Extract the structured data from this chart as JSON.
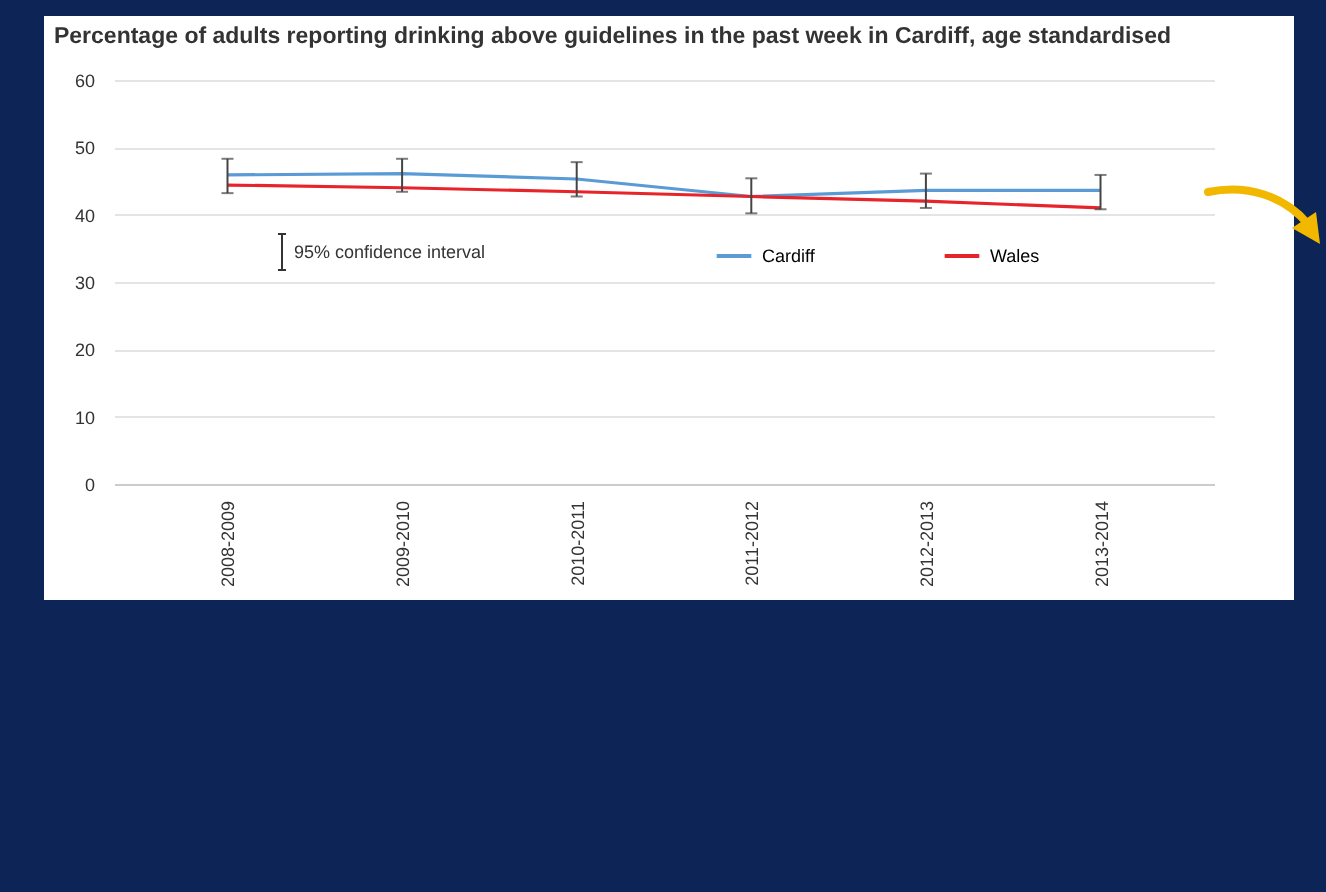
{
  "chart_data": {
    "type": "line",
    "title": "Percentage of adults reporting drinking above guidelines in the past week in Cardiff, age standardised",
    "categories": [
      "2008-2009",
      "2009-2010",
      "2010-2011",
      "2011-2012",
      "2012-2013",
      "2013-2014"
    ],
    "series": [
      {
        "name": "Cardiff",
        "color": "#5b9bd5",
        "values": [
          45.9,
          46.1,
          45.3,
          42.7,
          43.6,
          43.6
        ],
        "errors": [
          [
            43.2,
            48.3
          ],
          [
            43.4,
            48.3
          ],
          [
            42.7,
            47.8
          ],
          [
            40.2,
            45.4
          ],
          [
            41.0,
            46.1
          ],
          [
            40.8,
            45.9
          ]
        ]
      },
      {
        "name": "Wales",
        "color": "#e8242b",
        "values": [
          44.4,
          44.0,
          43.4,
          42.7,
          42.0,
          41.0
        ]
      }
    ],
    "ylim": [
      0,
      60
    ],
    "yticks": [
      0,
      10,
      20,
      30,
      40,
      50,
      60
    ],
    "grid": "y",
    "legend": "top",
    "marker": "none",
    "line_style": "solid",
    "annotations": [
      "95% confidence interval"
    ]
  }
}
